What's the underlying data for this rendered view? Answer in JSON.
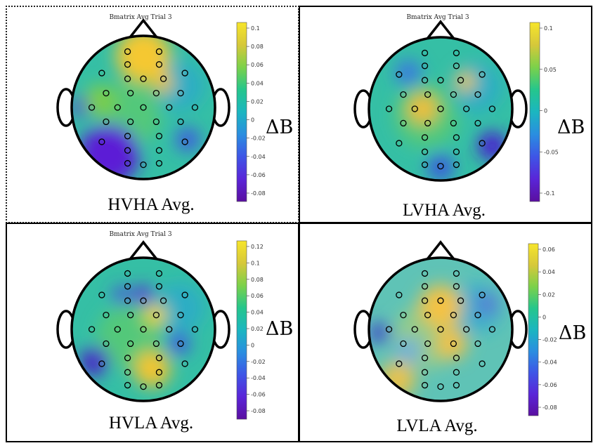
{
  "panels": [
    {
      "id": "hvha",
      "plot_title": "Bmatrix Avg Trial 3",
      "caption": "HVHA Avg.",
      "colorbar_label": "ΔB",
      "colorbar_ticks": [
        "0.1",
        "0.08",
        "0.06",
        "0.04",
        "0.02",
        "0",
        "-0.02",
        "-0.04",
        "-0.06",
        "-0.08"
      ],
      "blobs": [
        {
          "dx": 0.0,
          "dy": -0.72,
          "r": 0.38,
          "c": "#f5c832"
        },
        {
          "dx": 0.28,
          "dy": -0.33,
          "r": 0.14,
          "c": "#f5c22e"
        },
        {
          "dx": -0.48,
          "dy": 0.66,
          "r": 0.42,
          "c": "#5b1fd6"
        },
        {
          "dx": -0.85,
          "dy": -0.02,
          "r": 0.14,
          "c": "#5a22d0"
        },
        {
          "dx": 0.62,
          "dy": 0.45,
          "r": 0.16,
          "c": "#3f52e3"
        },
        {
          "dx": -0.6,
          "dy": -0.1,
          "r": 0.22,
          "c": "#7ccd4a"
        }
      ]
    },
    {
      "id": "lvha",
      "plot_title": "Bmatrix Avg Trial 3",
      "caption": "LVHA Avg.",
      "colorbar_label": "ΔB",
      "colorbar_ticks": [
        "0.1",
        "0.05",
        "0",
        "-0.05",
        "-0.1"
      ],
      "blobs": [
        {
          "dx": 0.35,
          "dy": -0.38,
          "r": 0.14,
          "c": "#f7c63a"
        },
        {
          "dx": -0.25,
          "dy": 0.0,
          "r": 0.22,
          "c": "#f0be3a"
        },
        {
          "dx": 0.72,
          "dy": 0.52,
          "r": 0.2,
          "c": "#4a1ad0"
        },
        {
          "dx": -0.45,
          "dy": -0.5,
          "r": 0.18,
          "c": "#3a78e0"
        },
        {
          "dx": 0.0,
          "dy": 0.82,
          "r": 0.18,
          "c": "#3b55e0"
        }
      ]
    },
    {
      "id": "hvla",
      "plot_title": "Bmatrix Avg Trial 3",
      "caption": "HVLA Avg.",
      "colorbar_label": "ΔB",
      "colorbar_ticks": [
        "0.12",
        "0.1",
        "0.08",
        "0.06",
        "0.04",
        "0.02",
        "0",
        "-0.02",
        "-0.04",
        "-0.06",
        "-0.08"
      ],
      "blobs": [
        {
          "dx": 0.17,
          "dy": -0.2,
          "r": 0.16,
          "c": "#f4d232"
        },
        {
          "dx": 0.12,
          "dy": 0.55,
          "r": 0.26,
          "c": "#f1c532"
        },
        {
          "dx": -0.68,
          "dy": 0.45,
          "r": 0.2,
          "c": "#4a1ec8"
        },
        {
          "dx": 0.0,
          "dy": -0.47,
          "r": 0.14,
          "c": "#5a2ad8"
        },
        {
          "dx": 0.5,
          "dy": 0.2,
          "r": 0.15,
          "c": "#3f55e0"
        },
        {
          "dx": -0.3,
          "dy": -0.47,
          "r": 0.12,
          "c": "#4b3fe0"
        }
      ]
    },
    {
      "id": "lvla",
      "plot_title": "",
      "caption": "LVLA Avg.",
      "colorbar_label": "ΔB",
      "colorbar_ticks": [
        "0.06",
        "0.04",
        "0.02",
        "0",
        "-0.02",
        "-0.04",
        "-0.06",
        "-0.08"
      ],
      "blobs": [
        {
          "dx": 0.0,
          "dy": -0.32,
          "r": 0.3,
          "c": "#f4c244"
        },
        {
          "dx": 0.15,
          "dy": 0.2,
          "r": 0.22,
          "c": "#f0c14a"
        },
        {
          "dx": -0.85,
          "dy": 0.05,
          "r": 0.14,
          "c": "#3a3ac8"
        },
        {
          "dx": -0.45,
          "dy": 0.3,
          "r": 0.18,
          "c": "#6fb0d8"
        },
        {
          "dx": 0.65,
          "dy": -0.35,
          "r": 0.15,
          "c": "#5678d6"
        },
        {
          "dx": -0.6,
          "dy": 0.7,
          "r": 0.25,
          "c": "#e7c24e"
        }
      ]
    }
  ],
  "electrodes": [
    [
      -0.22,
      -0.78
    ],
    [
      0.22,
      -0.78
    ],
    [
      -0.22,
      -0.6
    ],
    [
      0.22,
      -0.6
    ],
    [
      -0.58,
      -0.48
    ],
    [
      -0.22,
      -0.4
    ],
    [
      0.0,
      -0.4
    ],
    [
      0.28,
      -0.4
    ],
    [
      0.58,
      -0.48
    ],
    [
      -0.52,
      -0.2
    ],
    [
      -0.18,
      -0.2
    ],
    [
      0.18,
      -0.2
    ],
    [
      0.52,
      -0.2
    ],
    [
      -0.72,
      0.0
    ],
    [
      -0.36,
      0.0
    ],
    [
      0.0,
      0.0
    ],
    [
      0.36,
      0.0
    ],
    [
      0.72,
      0.0
    ],
    [
      -0.52,
      0.2
    ],
    [
      -0.18,
      0.2
    ],
    [
      0.18,
      0.2
    ],
    [
      0.52,
      0.2
    ],
    [
      -0.58,
      0.48
    ],
    [
      -0.22,
      0.4
    ],
    [
      0.22,
      0.4
    ],
    [
      0.58,
      0.48
    ],
    [
      -0.22,
      0.6
    ],
    [
      0.22,
      0.6
    ],
    [
      -0.22,
      0.78
    ],
    [
      0.0,
      0.8
    ],
    [
      0.22,
      0.78
    ]
  ],
  "colormap": [
    "#5a0fa0",
    "#5a25d8",
    "#3e55e6",
    "#2a8ee0",
    "#1bb6c0",
    "#25c68c",
    "#7cd14a",
    "#d6c83a",
    "#f7e52b"
  ]
}
